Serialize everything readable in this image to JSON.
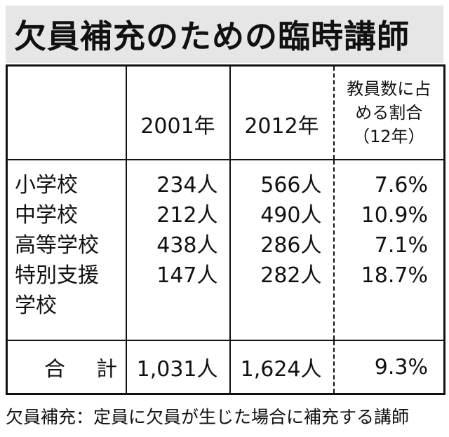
{
  "title": "欠員補充のための臨時講師",
  "table": {
    "header": {
      "col1": "2001年",
      "col2": "2012年",
      "col3_lines": [
        "教員数に占",
        "める割合",
        "（12年）"
      ]
    },
    "rows": [
      {
        "label_lines": [
          "小学校"
        ],
        "y2001": "234人",
        "y2012": "566人",
        "share": "7.6%"
      },
      {
        "label_lines": [
          "中学校"
        ],
        "y2001": "212人",
        "y2012": "490人",
        "share": "10.9%"
      },
      {
        "label_lines": [
          "高等学校"
        ],
        "y2001": "438人",
        "y2012": "286人",
        "share": "7.1%"
      },
      {
        "label_lines": [
          "特別支援",
          "学校"
        ],
        "y2001": "147人",
        "y2012": "282人",
        "share": "18.7%"
      }
    ],
    "total": {
      "label_chars": [
        "合",
        "計"
      ],
      "y2001": "1,031人",
      "y2012": "1,624人",
      "share": "9.3%"
    }
  },
  "footnote": "欠員補充：定員に欠員が生じた場合に補充する講師"
}
